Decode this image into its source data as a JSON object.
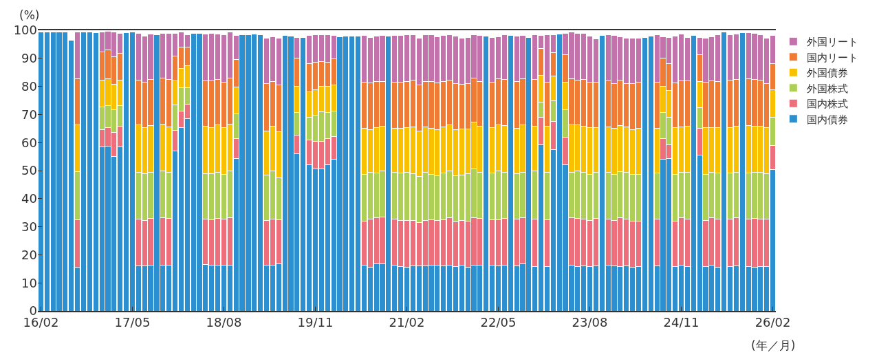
{
  "chart_data": {
    "type": "bar",
    "stacked": true,
    "ylabel": "(%)",
    "annotations": [
      "(年／月)"
    ],
    "categories": [
      "16/02",
      null,
      null,
      null,
      null,
      null,
      null,
      null,
      null,
      null,
      null,
      null,
      null,
      null,
      null,
      "17/05",
      null,
      null,
      null,
      null,
      null,
      null,
      null,
      null,
      null,
      null,
      null,
      null,
      null,
      null,
      "18/08",
      null,
      null,
      null,
      null,
      null,
      null,
      null,
      null,
      null,
      null,
      null,
      null,
      null,
      null,
      "19/11",
      null,
      null,
      null,
      null,
      null,
      null,
      null,
      null,
      null,
      null,
      null,
      null,
      null,
      null,
      "21/02",
      null,
      null,
      null,
      null,
      null,
      null,
      null,
      null,
      null,
      null,
      null,
      null,
      null,
      null,
      "22/05",
      null,
      null,
      null,
      null,
      null,
      null,
      null,
      null,
      null,
      null,
      null,
      null,
      null,
      null,
      "23/08",
      null,
      null,
      null,
      null,
      null,
      null,
      null,
      null,
      null,
      null,
      null,
      null,
      null,
      null,
      "24/11",
      null,
      null,
      null,
      null,
      null,
      null,
      null,
      null,
      null,
      null,
      null,
      null,
      null,
      null,
      "26/02"
    ],
    "ylim": [
      0,
      100
    ],
    "yticks": [
      0,
      10,
      20,
      30,
      40,
      50,
      60,
      70,
      80,
      90,
      100
    ],
    "legend": "top right",
    "series": [
      {
        "name": "国内債券",
        "color": "#2b8fd0",
        "values": [
          99.3,
          99.5,
          99.5,
          99.5,
          99.5,
          96.5,
          15.5,
          99.3,
          99.5,
          99.1,
          58.5,
          58.7,
          55,
          58.5,
          99.1,
          99.3,
          16,
          16,
          16.4,
          98.5,
          16.3,
          16.3,
          57,
          65.4,
          68.5,
          99,
          99,
          16.6,
          16.2,
          16.2,
          16.2,
          16.2,
          54.2,
          98.4,
          98.4,
          98.7,
          98.4,
          16.2,
          16.2,
          16.7,
          98.1,
          97.9,
          56,
          97.5,
          52,
          50.6,
          50.6,
          52,
          54,
          97.7,
          97.9,
          97.9,
          97.9,
          16.3,
          15.6,
          16.7,
          16.9,
          98,
          16.2,
          15.8,
          15.6,
          16,
          16,
          16,
          16.3,
          16.3,
          16,
          16.3,
          15.8,
          16.4,
          15.6,
          16.4,
          16.3,
          97.9,
          16.3,
          16,
          16.3,
          98.1,
          16,
          16.8,
          97.5,
          15.8,
          59.3,
          15.8,
          57.4,
          98.7,
          52,
          16.3,
          15.8,
          16,
          15.8,
          16,
          98.1,
          16.3,
          16,
          15.8,
          16,
          15.5,
          15.8,
          97.5,
          98,
          16,
          54,
          54.4,
          15.8,
          16.3,
          15.8,
          98.1,
          55.6,
          15.8,
          16.4,
          15.6,
          99.3,
          15.8,
          16,
          99.1,
          15.8,
          15.6,
          15.8,
          15.8,
          50.3
        ]
      },
      {
        "name": "国内株式",
        "color": "#ec6f7b",
        "values": [
          null,
          null,
          null,
          null,
          null,
          null,
          17,
          null,
          null,
          null,
          6,
          6.6,
          8.6,
          7.3,
          null,
          null,
          16.6,
          16.3,
          16.5,
          null,
          17,
          16.7,
          7.4,
          5.8,
          5.1,
          null,
          null,
          16.1,
          16.2,
          16.8,
          16.4,
          17,
          7.2,
          null,
          null,
          null,
          null,
          16,
          16.6,
          15.7,
          null,
          null,
          6.6,
          null,
          9,
          9.9,
          9.9,
          9.5,
          8.2,
          null,
          null,
          null,
          null,
          15.8,
          17.2,
          16.6,
          16.6,
          null,
          16.6,
          16.5,
          16.6,
          16.3,
          15.5,
          16.3,
          16.2,
          15.9,
          16.5,
          17,
          15.9,
          15.9,
          16.5,
          16.9,
          16.6,
          null,
          16.2,
          16.5,
          16.6,
          null,
          16.7,
          16.5,
          null,
          16.9,
          9.6,
          16.7,
          10.1,
          null,
          9.8,
          16.9,
          17.1,
          16.8,
          16.5,
          17,
          null,
          16.3,
          16.2,
          17.4,
          16.8,
          16.6,
          16.3,
          null,
          null,
          16.6,
          7.5,
          4.7,
          16.3,
          16.9,
          17,
          null,
          9.4,
          16.4,
          16.8,
          17,
          null,
          16.8,
          17.2,
          null,
          16.8,
          17.3,
          16.8,
          16.8,
          8.6
        ]
      },
      {
        "name": "外国株式",
        "color": "#aecf55",
        "values": [
          null,
          null,
          null,
          null,
          null,
          null,
          17.2,
          null,
          null,
          null,
          8.1,
          7.9,
          8,
          7.4,
          null,
          null,
          16.9,
          16.7,
          16.5,
          null,
          16.7,
          16.5,
          9,
          8.3,
          6,
          null,
          null,
          16.3,
          16.4,
          16.5,
          16.1,
          16.7,
          8.9,
          null,
          null,
          null,
          null,
          16.1,
          17,
          15.1,
          null,
          null,
          8.2,
          null,
          7.9,
          9.2,
          10.4,
          9.3,
          9,
          null,
          null,
          null,
          null,
          16.6,
          16.7,
          15.9,
          16.3,
          null,
          16.7,
          16.8,
          17.3,
          16.7,
          16.4,
          17,
          16.2,
          15.9,
          16.6,
          16.6,
          16.4,
          16.1,
          16.8,
          17.4,
          16.6,
          null,
          16.6,
          17.4,
          16.5,
          null,
          16.3,
          16.2,
          null,
          17.2,
          5.5,
          16.9,
          7.5,
          null,
          9.8,
          16.3,
          16.9,
          16.7,
          16.4,
          16.3,
          null,
          16.7,
          16.5,
          16.5,
          16.5,
          16.6,
          16.6,
          null,
          null,
          16.5,
          9.3,
          9.8,
          16.6,
          16.2,
          16.5,
          null,
          7.4,
          16.5,
          16.2,
          16.5,
          null,
          16.5,
          16.3,
          null,
          16.5,
          16.5,
          16.8,
          16.4,
          10.2
        ]
      },
      {
        "name": "外国債券",
        "color": "#f9c000",
        "values": [
          null,
          null,
          null,
          null,
          null,
          null,
          16.7,
          null,
          null,
          null,
          9.6,
          9.6,
          9.1,
          9,
          null,
          null,
          16.8,
          16.3,
          16.6,
          null,
          16.5,
          16,
          8.6,
          6.9,
          7.7,
          null,
          null,
          16.7,
          16.5,
          16.7,
          16.6,
          16.6,
          9.4,
          null,
          null,
          null,
          null,
          15.7,
          15.9,
          16.3,
          null,
          null,
          9.3,
          null,
          9.2,
          9.2,
          9.2,
          9.2,
          9.3,
          null,
          null,
          null,
          null,
          16.3,
          15.1,
          16.1,
          15.9,
          null,
          15.5,
          15.9,
          15.8,
          16.6,
          16.2,
          16.3,
          16.3,
          16.5,
          16.5,
          16.4,
          16.4,
          16.4,
          15.9,
          16.5,
          16.3,
          null,
          16.2,
          16.4,
          16.7,
          null,
          16,
          16.8,
          null,
          15.9,
          9.6,
          16.3,
          8.8,
          null,
          9.8,
          16.8,
          16.5,
          16.3,
          16.6,
          16.1,
          null,
          16.3,
          16.3,
          16.3,
          16.3,
          15.9,
          16.3,
          null,
          null,
          15.9,
          9.3,
          9.6,
          16.6,
          16.2,
          16.4,
          null,
          9.4,
          16.5,
          15.9,
          16.3,
          null,
          16.3,
          16.3,
          null,
          16.9,
          16.4,
          16.4,
          16.3,
          9.7
        ]
      },
      {
        "name": "国内リート",
        "color": "#ef7b35",
        "values": [
          null,
          null,
          null,
          null,
          null,
          null,
          16.4,
          null,
          null,
          null,
          10.2,
          10.3,
          9.9,
          9.6,
          null,
          null,
          15.9,
          16.3,
          16.4,
          null,
          16.5,
          17,
          8.8,
          7.6,
          6.7,
          null,
          null,
          16.3,
          16.7,
          16.2,
          16.2,
          16.5,
          9.8,
          null,
          null,
          null,
          null,
          17,
          16.1,
          16.7,
          null,
          null,
          10,
          null,
          10,
          9.7,
          8.8,
          8.5,
          9.3,
          null,
          null,
          null,
          null,
          16.6,
          16.7,
          16.5,
          16.1,
          null,
          16.6,
          16.6,
          16.5,
          16.6,
          16.5,
          16.2,
          16.8,
          16.6,
          16.1,
          15.9,
          16.5,
          16,
          16.3,
          15.8,
          16,
          null,
          16.1,
          16.5,
          16.3,
          null,
          16.8,
          16.5,
          null,
          16.6,
          9.5,
          15.9,
          8.2,
          null,
          9.9,
          16.5,
          15.9,
          16.6,
          16.3,
          16,
          null,
          16.3,
          16,
          16.2,
          15.5,
          16.5,
          16.6,
          null,
          null,
          16.6,
          10,
          9.6,
          15.9,
          16.4,
          16.2,
          null,
          9.6,
          16.2,
          16.7,
          16.4,
          null,
          16.8,
          16.6,
          null,
          16.6,
          16.6,
          16.4,
          15.8,
          9.4
        ]
      },
      {
        "name": "外国リート",
        "color": "#c372ab",
        "values": [
          null,
          null,
          null,
          null,
          null,
          null,
          16.5,
          null,
          null,
          null,
          6.9,
          6.5,
          8.7,
          7,
          null,
          null,
          16.7,
          16.3,
          16.3,
          null,
          16,
          16.3,
          8,
          5.3,
          4.3,
          null,
          null,
          16.7,
          17,
          16.3,
          16.8,
          16.3,
          8.6,
          null,
          null,
          null,
          null,
          16.3,
          15.9,
          16.8,
          null,
          null,
          7.4,
          null,
          10,
          9.7,
          9.6,
          9.9,
          8.3,
          null,
          null,
          null,
          null,
          16.5,
          16.2,
          16.1,
          16.4,
          null,
          16.5,
          16.5,
          16.7,
          16.3,
          16.7,
          16.5,
          16.7,
          16.5,
          16.4,
          16.1,
          17,
          16.3,
          16.4,
          15.5,
          16.3,
          null,
          16.1,
          14.9,
          16.1,
          null,
          16.1,
          15.3,
          null,
          16.1,
          4.6,
          16.9,
          6.5,
          null,
          7.6,
          16.5,
          16.7,
          16.4,
          16.4,
          15.5,
          null,
          16.6,
          17.1,
          15.5,
          16.2,
          16.2,
          15.7,
          null,
          null,
          16.7,
          7.6,
          9.4,
          16.8,
          16.7,
          15.6,
          null,
          6.1,
          15.7,
          15.7,
          16.7,
          null,
          16.2,
          16.3,
          null,
          16.5,
          16.5,
          16.1,
          16.2,
          9.9
        ]
      }
    ]
  }
}
